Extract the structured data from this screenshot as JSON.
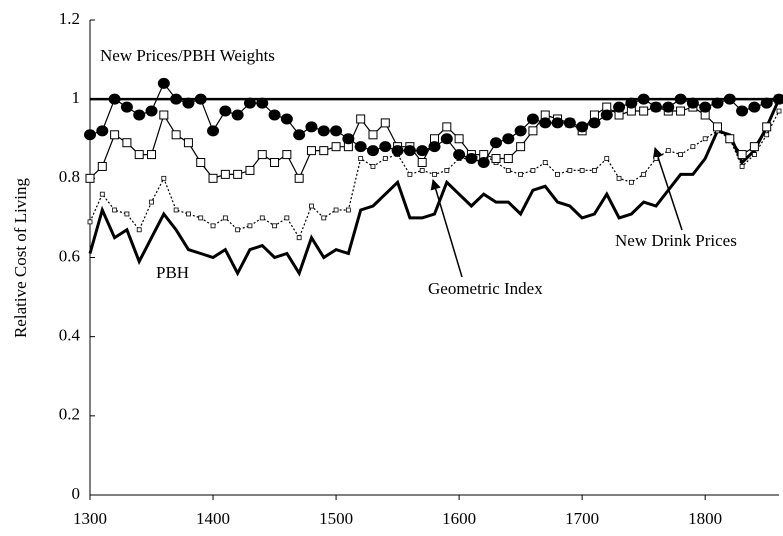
{
  "chart_data": {
    "type": "line",
    "ylabel": "Relative Cost of Living",
    "x": [
      1300,
      1310,
      1320,
      1330,
      1340,
      1350,
      1360,
      1370,
      1380,
      1390,
      1400,
      1410,
      1420,
      1430,
      1440,
      1450,
      1460,
      1470,
      1480,
      1490,
      1500,
      1510,
      1520,
      1530,
      1540,
      1550,
      1560,
      1570,
      1580,
      1590,
      1600,
      1610,
      1620,
      1630,
      1640,
      1650,
      1660,
      1670,
      1680,
      1690,
      1700,
      1710,
      1720,
      1730,
      1740,
      1750,
      1760,
      1770,
      1780,
      1790,
      1800,
      1810,
      1820,
      1830,
      1840,
      1850,
      1860
    ],
    "series": [
      {
        "name": "New Prices/PBH Weights",
        "color": "#000000",
        "marker": "circle",
        "values": [
          0.91,
          0.92,
          1.0,
          0.98,
          0.96,
          0.97,
          1.04,
          1.0,
          0.99,
          1.0,
          0.92,
          0.97,
          0.96,
          0.99,
          0.99,
          0.96,
          0.95,
          0.91,
          0.93,
          0.92,
          0.92,
          0.9,
          0.88,
          0.87,
          0.88,
          0.87,
          0.87,
          0.87,
          0.88,
          0.9,
          0.86,
          0.85,
          0.84,
          0.89,
          0.9,
          0.92,
          0.95,
          0.94,
          0.94,
          0.94,
          0.93,
          0.94,
          0.96,
          0.98,
          0.99,
          1.0,
          0.98,
          0.98,
          1.0,
          0.99,
          0.98,
          0.99,
          1.0,
          0.97,
          0.98,
          0.99,
          1.0
        ]
      },
      {
        "name": "New Drink Prices",
        "color": "#000000",
        "marker": "square",
        "values": [
          0.8,
          0.83,
          0.91,
          0.89,
          0.86,
          0.86,
          0.96,
          0.91,
          0.89,
          0.84,
          0.8,
          0.81,
          0.81,
          0.82,
          0.86,
          0.84,
          0.86,
          0.8,
          0.87,
          0.87,
          0.88,
          0.88,
          0.95,
          0.91,
          0.94,
          0.88,
          0.88,
          0.84,
          0.9,
          0.93,
          0.9,
          0.86,
          0.86,
          0.85,
          0.85,
          0.88,
          0.92,
          0.96,
          0.95,
          0.94,
          0.92,
          0.96,
          0.98,
          0.96,
          0.97,
          0.97,
          0.98,
          0.97,
          0.97,
          0.98,
          0.96,
          0.93,
          0.9,
          0.86,
          0.88,
          0.93,
          1.0
        ]
      },
      {
        "name": "Geometric Index",
        "color": "#000000",
        "marker": "small-square",
        "dash": true,
        "values": [
          0.69,
          0.76,
          0.72,
          0.71,
          0.67,
          0.74,
          0.8,
          0.72,
          0.71,
          0.7,
          0.68,
          0.7,
          0.67,
          0.68,
          0.7,
          0.68,
          0.7,
          0.65,
          0.73,
          0.7,
          0.72,
          0.72,
          0.85,
          0.83,
          0.85,
          0.86,
          0.81,
          0.82,
          0.81,
          0.82,
          0.85,
          0.85,
          0.86,
          0.84,
          0.82,
          0.81,
          0.82,
          0.84,
          0.81,
          0.82,
          0.82,
          0.82,
          0.85,
          0.8,
          0.79,
          0.81,
          0.85,
          0.87,
          0.86,
          0.88,
          0.9,
          0.92,
          0.9,
          0.83,
          0.86,
          0.91,
          0.97
        ]
      },
      {
        "name": "PBH",
        "color": "#000000",
        "marker": "none",
        "width": 3,
        "values": [
          0.61,
          0.72,
          0.65,
          0.67,
          0.59,
          0.65,
          0.71,
          0.67,
          0.62,
          0.61,
          0.6,
          0.62,
          0.56,
          0.62,
          0.63,
          0.6,
          0.61,
          0.56,
          0.65,
          0.6,
          0.62,
          0.61,
          0.72,
          0.73,
          0.76,
          0.79,
          0.7,
          0.7,
          0.71,
          0.79,
          0.76,
          0.73,
          0.76,
          0.74,
          0.74,
          0.71,
          0.77,
          0.78,
          0.74,
          0.73,
          0.7,
          0.71,
          0.76,
          0.7,
          0.71,
          0.74,
          0.73,
          0.77,
          0.81,
          0.81,
          0.85,
          0.92,
          0.91,
          0.84,
          0.87,
          0.93,
          1.0
        ]
      }
    ],
    "hline": 1,
    "xlim": [
      1300,
      1860
    ],
    "xticks": [
      1300,
      1400,
      1500,
      1600,
      1700,
      1800
    ],
    "ylim": [
      0,
      1.2
    ],
    "yticks": [
      0,
      0.2,
      0.4,
      0.6,
      0.8,
      1,
      1.2
    ]
  }
}
